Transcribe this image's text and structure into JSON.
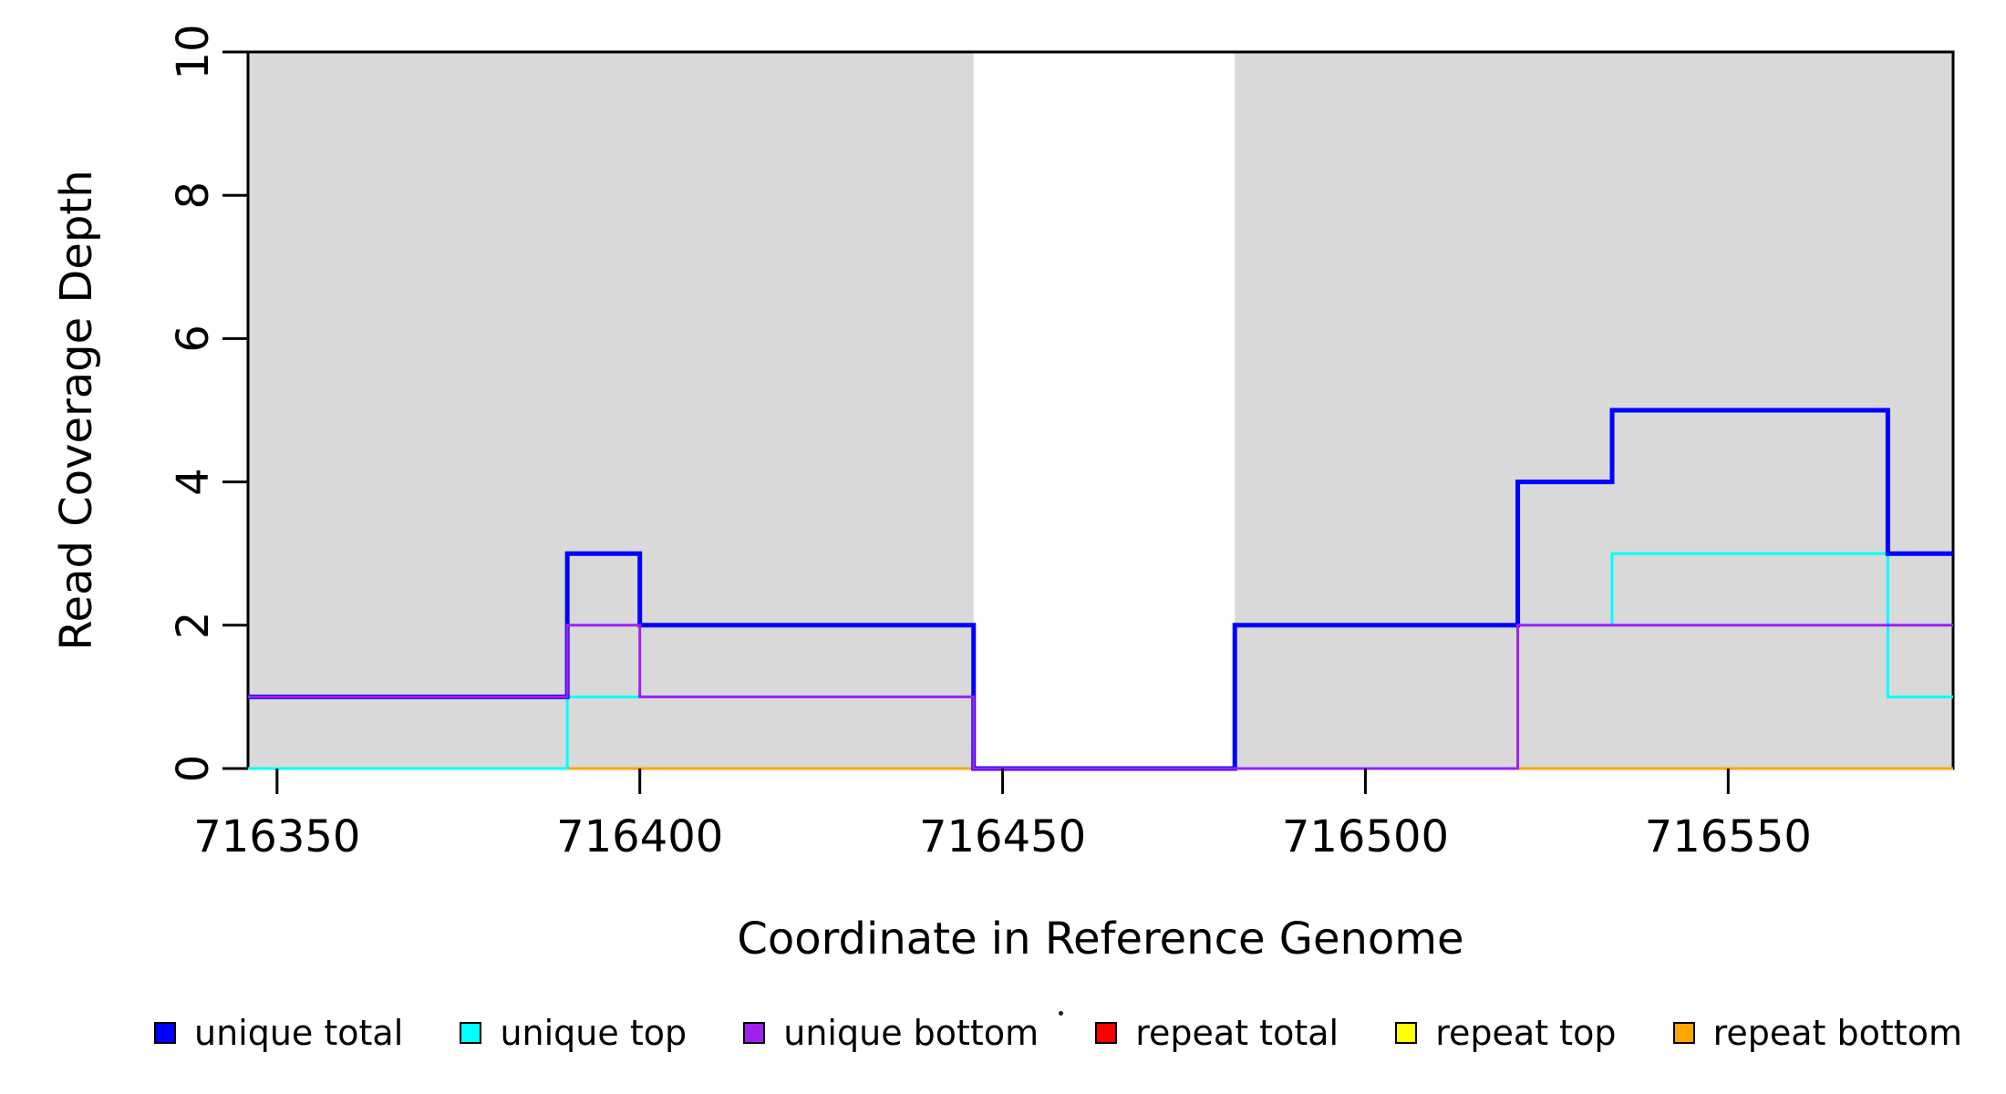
{
  "chart_data": {
    "type": "line",
    "subtype": "step-coverage-plot",
    "title": "",
    "xlabel": "Coordinate in Reference Genome",
    "ylabel": "Read Coverage Depth",
    "xlim": [
      716346,
      716581
    ],
    "ylim": [
      0,
      10
    ],
    "x_ticks": [
      716350,
      716400,
      716450,
      716500,
      716550
    ],
    "y_ticks": [
      0,
      2,
      4,
      6,
      8,
      10
    ],
    "grid": false,
    "background_color": "#FFFFFF",
    "shaded_region_color": "#D9D9D9",
    "shaded_regions": [
      {
        "x0": 716346,
        "x1": 716446
      },
      {
        "x0": 716482,
        "x1": 716581
      }
    ],
    "series": [
      {
        "name": "repeat total",
        "color": "#FF0000",
        "lwd": 3,
        "points": [
          [
            716346,
            0
          ],
          [
            716581,
            0
          ]
        ]
      },
      {
        "name": "repeat top",
        "color": "#FFFF00",
        "lwd": 3,
        "points": [
          [
            716346,
            0
          ],
          [
            716581,
            0
          ]
        ]
      },
      {
        "name": "repeat bottom",
        "color": "#FFA500",
        "lwd": 3,
        "points": [
          [
            716346,
            0
          ],
          [
            716581,
            0
          ]
        ]
      },
      {
        "name": "unique top",
        "color": "#00FFFF",
        "lwd": 3,
        "points": [
          [
            716346,
            0
          ],
          [
            716390,
            0
          ],
          [
            716390,
            1
          ],
          [
            716446,
            1
          ],
          [
            716446,
            0
          ],
          [
            716482,
            0
          ],
          [
            716482,
            2
          ],
          [
            716534,
            2
          ],
          [
            716534,
            3
          ],
          [
            716572,
            3
          ],
          [
            716572,
            1
          ],
          [
            716581,
            1
          ]
        ]
      },
      {
        "name": "unique total",
        "color": "#0000FF",
        "lwd": 5,
        "points": [
          [
            716346,
            1
          ],
          [
            716390,
            1
          ],
          [
            716390,
            3
          ],
          [
            716400,
            3
          ],
          [
            716400,
            2
          ],
          [
            716446,
            2
          ],
          [
            716446,
            0
          ],
          [
            716482,
            0
          ],
          [
            716482,
            2
          ],
          [
            716521,
            2
          ],
          [
            716521,
            4
          ],
          [
            716534,
            4
          ],
          [
            716534,
            5
          ],
          [
            716572,
            5
          ],
          [
            716572,
            3
          ],
          [
            716581,
            3
          ]
        ]
      },
      {
        "name": "unique bottom",
        "color": "#A020F0",
        "lwd": 3,
        "points": [
          [
            716346,
            1
          ],
          [
            716390,
            1
          ],
          [
            716390,
            2
          ],
          [
            716400,
            2
          ],
          [
            716400,
            1
          ],
          [
            716446,
            1
          ],
          [
            716446,
            0
          ],
          [
            716521,
            0
          ],
          [
            716521,
            2
          ],
          [
            716581,
            2
          ]
        ]
      }
    ],
    "legend": [
      {
        "label": "unique total",
        "color": "#0000FF"
      },
      {
        "label": "unique top",
        "color": "#00FFFF"
      },
      {
        "label": "unique bottom",
        "color": "#A020F0"
      },
      {
        "label": "repeat total",
        "color": "#FF0000"
      },
      {
        "label": "repeat top",
        "color": "#FFFF00"
      },
      {
        "label": "repeat bottom",
        "color": "#FFA500"
      }
    ],
    "legend_position": "bottom"
  }
}
